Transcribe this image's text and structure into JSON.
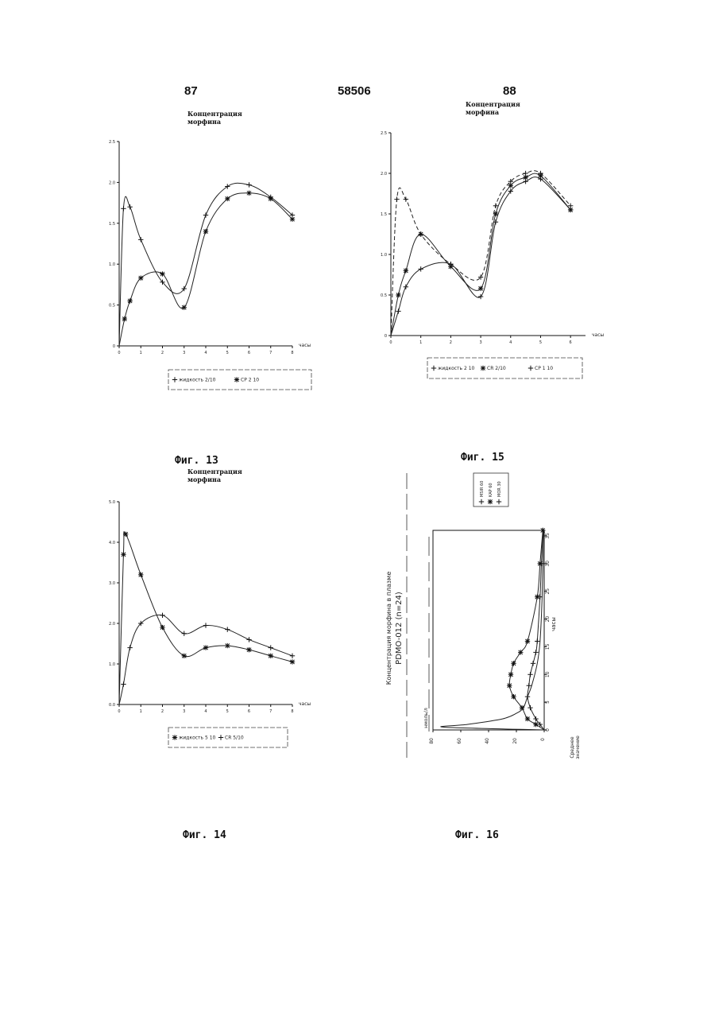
{
  "page": {
    "left_number": "87",
    "center_number": "58506",
    "right_number": "88"
  },
  "chart_data": [
    {
      "id": "fig13",
      "type": "line",
      "caption": "Фиг. 13",
      "title_line1": "Концентрация",
      "title_line2": "морфина",
      "xlabel": "часы",
      "xlim": [
        0,
        8
      ],
      "ylim": [
        0,
        2.5
      ],
      "x_ticks": [
        "0",
        "1",
        "2",
        "3",
        "4",
        "5",
        "6",
        "7",
        "8"
      ],
      "y_ticks": [
        {
          "v": 0,
          "t": "0"
        },
        {
          "v": 0.5,
          "t": "0.5"
        },
        {
          "v": 1,
          "t": "1.0"
        },
        {
          "v": 1.5,
          "t": "1.5"
        },
        {
          "v": 2,
          "t": "2.0"
        },
        {
          "v": 2.5,
          "t": "2.5"
        }
      ],
      "legend": [
        "жидкость 2/10",
        "CP 2 10"
      ],
      "series": [
        {
          "name": "жидкость 2/10",
          "marker": "plus",
          "x": [
            0,
            0.2,
            0.5,
            1,
            2,
            3,
            4,
            5,
            6,
            7,
            8
          ],
          "y": [
            0,
            1.68,
            1.7,
            1.3,
            0.78,
            0.7,
            1.6,
            1.95,
            1.97,
            1.82,
            1.6
          ]
        },
        {
          "name": "CP 2 10",
          "marker": "star",
          "x": [
            0,
            0.25,
            0.5,
            1,
            2,
            3,
            4,
            5,
            6,
            7,
            8
          ],
          "y": [
            0,
            0.33,
            0.55,
            0.83,
            0.88,
            0.47,
            1.4,
            1.8,
            1.87,
            1.8,
            1.55
          ]
        }
      ]
    },
    {
      "id": "fig15",
      "type": "line",
      "caption": "Фиг. 15",
      "title_line1": "Концентрация",
      "title_line2": "морфина",
      "xlabel": "часы",
      "xlim": [
        0,
        6.5
      ],
      "ylim": [
        0,
        2.5
      ],
      "x_ticks": [
        "0",
        "1",
        "2",
        "3",
        "4",
        "5",
        "6"
      ],
      "y_ticks": [
        {
          "v": 0,
          "t": "0"
        },
        {
          "v": 0.5,
          "t": "0.5"
        },
        {
          "v": 1,
          "t": "1.0"
        },
        {
          "v": 1.5,
          "t": "1.5"
        },
        {
          "v": 2,
          "t": "2.0"
        },
        {
          "v": 2.5,
          "t": "2.5"
        }
      ],
      "legend": [
        "жидкость 2 10",
        "CR 2/10",
        "CP 1 10"
      ],
      "series": [
        {
          "name": "жидкость 2 10",
          "marker": "plus",
          "x": [
            0,
            0.2,
            0.5,
            1,
            2,
            3,
            3.5,
            4,
            4.5,
            5,
            6
          ],
          "y": [
            0,
            1.68,
            1.68,
            1.25,
            0.88,
            0.72,
            1.6,
            1.9,
            2.0,
            2.0,
            1.6
          ]
        },
        {
          "name": "CR 2/10",
          "marker": "star",
          "x": [
            0,
            0.25,
            0.5,
            1,
            2,
            3,
            3.5,
            4,
            4.5,
            5,
            6
          ],
          "y": [
            0,
            0.5,
            0.8,
            1.25,
            0.85,
            0.58,
            1.5,
            1.85,
            1.95,
            1.97,
            1.55
          ]
        },
        {
          "name": "CP 1 10",
          "marker": "plus",
          "x": [
            0,
            0.25,
            0.5,
            1,
            2,
            3,
            3.5,
            4,
            4.5,
            5,
            6
          ],
          "y": [
            0,
            0.3,
            0.6,
            0.82,
            0.88,
            0.48,
            1.4,
            1.78,
            1.9,
            1.93,
            1.55
          ]
        }
      ]
    },
    {
      "id": "fig14",
      "type": "line",
      "caption": "Фиг. 14",
      "title_line1": "Концентрация",
      "title_line2": "морфина",
      "xlabel": "часы",
      "xlim": [
        0,
        8
      ],
      "ylim": [
        0,
        5
      ],
      "x_ticks": [
        "0",
        "1",
        "2",
        "3",
        "4",
        "5",
        "6",
        "7",
        "8"
      ],
      "y_ticks": [
        {
          "v": 0,
          "t": "0.0"
        },
        {
          "v": 1,
          "t": "1.0"
        },
        {
          "v": 2,
          "t": "2.0"
        },
        {
          "v": 3,
          "t": "3.0"
        },
        {
          "v": 4,
          "t": "4.0"
        },
        {
          "v": 5,
          "t": "5.0"
        }
      ],
      "legend": [
        "жидкость 5 10",
        "CR 5/10"
      ],
      "series": [
        {
          "name": "жидкость 5 10",
          "marker": "star",
          "x": [
            0,
            0.2,
            0.3,
            1,
            2,
            3,
            4,
            5,
            6,
            7,
            8
          ],
          "y": [
            0,
            3.7,
            4.2,
            3.2,
            1.9,
            1.2,
            1.4,
            1.45,
            1.35,
            1.2,
            1.05
          ]
        },
        {
          "name": "CR 5/10",
          "marker": "plus",
          "x": [
            0,
            0.2,
            0.5,
            1,
            2,
            3,
            4,
            5,
            6,
            7,
            8
          ],
          "y": [
            0,
            0.5,
            1.4,
            2.0,
            2.2,
            1.75,
            1.95,
            1.85,
            1.6,
            1.4,
            1.2
          ]
        }
      ]
    },
    {
      "id": "fig16",
      "type": "line",
      "caption": "Фиг. 16",
      "title": "Концентрация морфина в плазме",
      "subtitle": "PDMO-012 (n=24)",
      "ylabel": "нмоль/л",
      "xlabel": "часы",
      "mean_label_line1": "Среднее",
      "mean_label_line2": "значение",
      "xlim": [
        0,
        36
      ],
      "ylim": [
        0,
        80
      ],
      "x_ticks": [
        "0",
        "5",
        "10",
        "15",
        "20",
        "25",
        "30",
        "35"
      ],
      "y_ticks": [
        "0",
        "20",
        "40",
        "60",
        "80"
      ],
      "legend": [
        "MSIR 60",
        "KAP 60",
        "MOR 30"
      ],
      "series": [
        {
          "name": "MSIR 60",
          "marker": "none",
          "x": [
            0,
            0.5,
            1,
            2,
            3,
            4,
            6,
            8,
            12,
            16,
            24,
            36
          ],
          "y": [
            0,
            72,
            55,
            30,
            20,
            15,
            12,
            9,
            5,
            3,
            1.5,
            0.5
          ]
        },
        {
          "name": "KAP 60",
          "marker": "star",
          "x": [
            0,
            1,
            2,
            4,
            6,
            8,
            10,
            12,
            14,
            16,
            24,
            30,
            36
          ],
          "y": [
            0,
            6,
            12,
            16,
            22,
            25,
            24,
            22,
            17,
            12,
            5,
            3,
            1
          ]
        },
        {
          "name": "MOR 30",
          "marker": "plus",
          "x": [
            0,
            1,
            2,
            4,
            6,
            8,
            10,
            12,
            14,
            16,
            24,
            30,
            36
          ],
          "y": [
            0,
            3,
            6,
            10,
            12,
            11,
            10,
            8,
            6,
            5,
            3,
            2,
            1
          ]
        }
      ]
    }
  ]
}
